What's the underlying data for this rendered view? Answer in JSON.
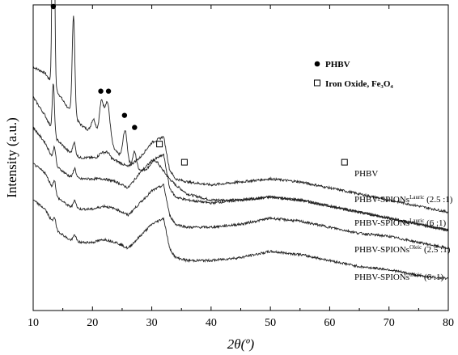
{
  "chart_data": {
    "type": "line",
    "xlabel": "2θ(º)",
    "ylabel": "Intensity (a.u.)",
    "xlim": [
      10,
      80
    ],
    "xticks": [
      10,
      20,
      30,
      40,
      50,
      60,
      70,
      80
    ],
    "y_ticks_shown": false,
    "grid": false,
    "legend_position": "top-right",
    "legend": [
      {
        "marker": "filled-circle",
        "label": "PHBV"
      },
      {
        "marker": "open-square",
        "label": "Iron Oxide, Fe₃O₄"
      }
    ],
    "series": [
      {
        "name": "PHBV",
        "label_parts": [
          "PHBV",
          "",
          ""
        ],
        "start_level": 0.8,
        "baseline": [
          [
            10,
            0.8
          ],
          [
            12,
            0.78
          ],
          [
            14,
            0.72
          ],
          [
            16,
            0.66
          ],
          [
            18,
            0.61
          ],
          [
            20,
            0.58
          ],
          [
            22,
            0.55
          ],
          [
            24,
            0.52
          ],
          [
            26,
            0.48
          ],
          [
            28,
            0.46
          ],
          [
            30,
            0.45
          ],
          [
            32,
            0.45
          ],
          [
            34,
            0.41
          ],
          [
            36,
            0.38
          ],
          [
            40,
            0.36
          ],
          [
            45,
            0.36
          ],
          [
            50,
            0.37
          ],
          [
            55,
            0.36
          ],
          [
            60,
            0.34
          ],
          [
            65,
            0.32
          ],
          [
            70,
            0.3
          ],
          [
            75,
            0.28
          ],
          [
            80,
            0.26
          ]
        ],
        "peaks": [
          [
            13.4,
            1.0,
            0.18
          ],
          [
            16.8,
            0.33,
            0.22
          ],
          [
            20.2,
            0.05,
            0.4
          ],
          [
            21.5,
            0.12,
            0.35
          ],
          [
            22.5,
            0.14,
            0.45
          ],
          [
            25.5,
            0.1,
            0.35
          ],
          [
            27.1,
            0.05,
            0.3
          ],
          [
            30.5,
            0.04,
            0.8
          ]
        ]
      },
      {
        "name": "PHBV-SPIONsLauric (2.5 :1)",
        "label_parts": [
          "PHBV-SPIONs",
          "Lauric",
          " (2.5 :1)"
        ],
        "start_level": 0.7,
        "baseline": [
          [
            10,
            0.7
          ],
          [
            12,
            0.64
          ],
          [
            14,
            0.56
          ],
          [
            16,
            0.52
          ],
          [
            18,
            0.5
          ],
          [
            20,
            0.5
          ],
          [
            22,
            0.5
          ],
          [
            24,
            0.49
          ],
          [
            26,
            0.47
          ],
          [
            28,
            0.5
          ],
          [
            30,
            0.55
          ],
          [
            32,
            0.57
          ],
          [
            33,
            0.46
          ],
          [
            34,
            0.43
          ],
          [
            36,
            0.42
          ],
          [
            40,
            0.41
          ],
          [
            45,
            0.42
          ],
          [
            50,
            0.43
          ],
          [
            55,
            0.42
          ],
          [
            60,
            0.4
          ],
          [
            65,
            0.38
          ],
          [
            70,
            0.36
          ],
          [
            75,
            0.34
          ],
          [
            80,
            0.32
          ]
        ],
        "peaks": [
          [
            13.4,
            0.16,
            0.18
          ],
          [
            16.9,
            0.04,
            0.22
          ],
          [
            21.5,
            0.015,
            0.4
          ],
          [
            22.5,
            0.02,
            0.45
          ]
        ]
      },
      {
        "name": "PHBV-SPIONsLauric (6 :1)",
        "label_parts": [
          "PHBV-SPIONs",
          "Lauric",
          " (6 :1)"
        ],
        "start_level": 0.6,
        "baseline": [
          [
            10,
            0.6
          ],
          [
            12,
            0.55
          ],
          [
            14,
            0.47
          ],
          [
            16,
            0.44
          ],
          [
            18,
            0.43
          ],
          [
            20,
            0.43
          ],
          [
            22,
            0.43
          ],
          [
            24,
            0.42
          ],
          [
            26,
            0.4
          ],
          [
            28,
            0.45
          ],
          [
            30,
            0.49
          ],
          [
            32,
            0.51
          ],
          [
            33,
            0.4
          ],
          [
            34,
            0.37
          ],
          [
            36,
            0.36
          ],
          [
            40,
            0.35
          ],
          [
            45,
            0.36
          ],
          [
            50,
            0.37
          ],
          [
            55,
            0.36
          ],
          [
            60,
            0.34
          ],
          [
            65,
            0.32
          ],
          [
            70,
            0.3
          ],
          [
            75,
            0.28
          ],
          [
            80,
            0.26
          ]
        ],
        "peaks": [
          [
            13.6,
            0.05,
            0.2
          ],
          [
            17.0,
            0.03,
            0.22
          ]
        ]
      },
      {
        "name": "PHBV-SPIONsOleic (2.5 :1)",
        "label_parts": [
          "PHBV-SPIONs",
          "Oleic",
          " (2.5 :1)"
        ],
        "start_level": 0.48,
        "baseline": [
          [
            10,
            0.48
          ],
          [
            12,
            0.45
          ],
          [
            14,
            0.37
          ],
          [
            16,
            0.34
          ],
          [
            18,
            0.33
          ],
          [
            20,
            0.33
          ],
          [
            22,
            0.34
          ],
          [
            24,
            0.33
          ],
          [
            26,
            0.31
          ],
          [
            28,
            0.35
          ],
          [
            30,
            0.39
          ],
          [
            32,
            0.41
          ],
          [
            33,
            0.31
          ],
          [
            34,
            0.28
          ],
          [
            36,
            0.27
          ],
          [
            40,
            0.27
          ],
          [
            45,
            0.28
          ],
          [
            50,
            0.3
          ],
          [
            55,
            0.29
          ],
          [
            60,
            0.27
          ],
          [
            65,
            0.25
          ],
          [
            70,
            0.24
          ],
          [
            75,
            0.22
          ],
          [
            80,
            0.2
          ]
        ],
        "peaks": [
          [
            13.6,
            0.04,
            0.2
          ],
          [
            17.0,
            0.025,
            0.22
          ]
        ]
      },
      {
        "name": "PHBV-SPIONsOleic (6 :1)",
        "label_parts": [
          "PHBV-SPIONs",
          "Oleic",
          " (6 :1)"
        ],
        "start_level": 0.36,
        "baseline": [
          [
            10,
            0.36
          ],
          [
            12,
            0.33
          ],
          [
            14,
            0.26
          ],
          [
            16,
            0.23
          ],
          [
            18,
            0.22
          ],
          [
            20,
            0.22
          ],
          [
            22,
            0.23
          ],
          [
            24,
            0.22
          ],
          [
            26,
            0.2
          ],
          [
            28,
            0.24
          ],
          [
            30,
            0.28
          ],
          [
            32,
            0.3
          ],
          [
            33,
            0.2
          ],
          [
            34,
            0.17
          ],
          [
            36,
            0.16
          ],
          [
            40,
            0.16
          ],
          [
            45,
            0.17
          ],
          [
            50,
            0.19
          ],
          [
            55,
            0.18
          ],
          [
            60,
            0.16
          ],
          [
            65,
            0.14
          ],
          [
            70,
            0.13
          ],
          [
            75,
            0.11
          ],
          [
            80,
            0.1
          ]
        ],
        "peaks": [
          [
            13.6,
            0.03,
            0.2
          ],
          [
            17.0,
            0.02,
            0.22
          ]
        ]
      }
    ],
    "annotations": [
      {
        "marker": "filled-circle",
        "x": 13.4,
        "y": 1.0
      },
      {
        "marker": "filled-circle",
        "x": 21.4,
        "y": 0.72
      },
      {
        "marker": "filled-circle",
        "x": 22.7,
        "y": 0.72
      },
      {
        "marker": "filled-circle",
        "x": 25.4,
        "y": 0.64
      },
      {
        "marker": "filled-circle",
        "x": 27.1,
        "y": 0.6
      },
      {
        "marker": "open-square",
        "x": 31.3,
        "y": 0.545
      },
      {
        "marker": "open-square",
        "x": 35.5,
        "y": 0.485
      },
      {
        "marker": "open-square",
        "x": 62.5,
        "y": 0.485
      }
    ]
  }
}
